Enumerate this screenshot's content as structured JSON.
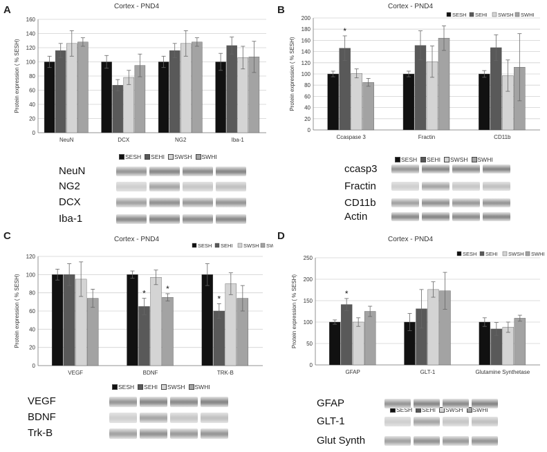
{
  "legend_labels": [
    "SESH",
    "SEHI",
    "SWSH",
    "SWHI"
  ],
  "colors": [
    "#111111",
    "#595959",
    "#d4d4d4",
    "#a3a3a3"
  ],
  "panels": [
    {
      "letter": "A",
      "blots": [
        "NeuN",
        "NG2",
        "DCX",
        "Iba-1"
      ],
      "chart_data": {
        "type": "bar",
        "title": "Cortex - PND4",
        "ylabel": "Protein expression ( % SESH)",
        "xlabel": "",
        "ylim": [
          0,
          160
        ],
        "yticks": [
          0,
          20,
          40,
          60,
          80,
          100,
          120,
          140,
          160
        ],
        "categories": [
          "NeuN",
          "DCX",
          "NG2",
          "Iba-1"
        ],
        "series": [
          {
            "name": "SESH",
            "values": [
              100,
              100,
              100,
              100
            ],
            "errors": [
              8,
              9,
              8,
              12
            ]
          },
          {
            "name": "SEHI",
            "values": [
              116,
              67,
              116,
              123
            ],
            "errors": [
              10,
              8,
              10,
              12
            ]
          },
          {
            "name": "SWSH",
            "values": [
              126,
              78,
              126,
              106
            ],
            "errors": [
              18,
              10,
              18,
              16
            ]
          },
          {
            "name": "SWHI",
            "values": [
              128,
              95,
              128,
              107
            ],
            "errors": [
              6,
              16,
              6,
              22
            ]
          }
        ],
        "significance": []
      }
    },
    {
      "letter": "B",
      "blots": [
        "ccasp3",
        "Fractin",
        "CD11b",
        "Actin"
      ],
      "chart_data": {
        "type": "bar",
        "title": "Cortex - PND4",
        "ylabel": "Protein expression ( % SESH)",
        "xlabel": "",
        "ylim": [
          0,
          200
        ],
        "yticks": [
          0,
          20,
          40,
          60,
          80,
          100,
          120,
          140,
          160,
          180,
          200
        ],
        "categories": [
          "Ccaspase 3",
          "Fractin",
          "CD11b"
        ],
        "series": [
          {
            "name": "SESH",
            "values": [
              100,
              100,
              100
            ],
            "errors": [
              5,
              5,
              6
            ]
          },
          {
            "name": "SEHI",
            "values": [
              146,
              151,
              147
            ],
            "errors": [
              22,
              26,
              23
            ]
          },
          {
            "name": "SWSH",
            "values": [
              101,
              122,
              97
            ],
            "errors": [
              8,
              28,
              28
            ]
          },
          {
            "name": "SWHI",
            "values": [
              85,
              164,
              112
            ],
            "errors": [
              7,
              22,
              60
            ]
          }
        ],
        "significance": [
          {
            "category": 0,
            "series": 1,
            "label": "*"
          }
        ]
      }
    },
    {
      "letter": "C",
      "blots": [
        "VEGF",
        "BDNF",
        "Trk-B"
      ],
      "chart_data": {
        "type": "bar",
        "title": "Cortex - PND4",
        "ylabel": "Protein expression ( % SESH)",
        "xlabel": "",
        "ylim": [
          0,
          120
        ],
        "yticks": [
          0,
          20,
          40,
          60,
          80,
          100,
          120
        ],
        "categories": [
          "VEGF",
          "BDNF",
          "TRK-B"
        ],
        "series": [
          {
            "name": "SESH",
            "values": [
              100,
              100,
              100
            ],
            "errors": [
              6,
              4,
              12
            ]
          },
          {
            "name": "SEHI",
            "values": [
              100,
              65,
              60
            ],
            "errors": [
              12,
              9,
              8
            ]
          },
          {
            "name": "SWSH",
            "values": [
              95,
              97,
              90
            ],
            "errors": [
              19,
              8,
              12
            ]
          },
          {
            "name": "SWHI",
            "values": [
              74,
              75,
              74
            ],
            "errors": [
              10,
              4,
              14
            ]
          }
        ],
        "significance": [
          {
            "category": 1,
            "series": 1,
            "label": "*"
          },
          {
            "category": 1,
            "series": 3,
            "label": "*"
          },
          {
            "category": 2,
            "series": 1,
            "label": "*"
          }
        ]
      }
    },
    {
      "letter": "D",
      "blots": [
        "GFAP",
        "GLT-1",
        "Glut Synth"
      ],
      "chart_data": {
        "type": "bar",
        "title": "Cortex - PND4",
        "ylabel": "Protein expression ( % SESH)",
        "xlabel": "",
        "ylim": [
          0,
          250
        ],
        "yticks": [
          0,
          50,
          100,
          150,
          200,
          250
        ],
        "categories": [
          "GFAP",
          "GLT-1",
          "Glutamine Synthetase"
        ],
        "series": [
          {
            "name": "SESH",
            "values": [
              100,
              100,
              100
            ],
            "errors": [
              5,
              20,
              10
            ]
          },
          {
            "name": "SEHI",
            "values": [
              141,
              131,
              84
            ],
            "errors": [
              14,
              45,
              15
            ]
          },
          {
            "name": "SWSH",
            "values": [
              100,
              176,
              88
            ],
            "errors": [
              10,
              18,
              12
            ]
          },
          {
            "name": "SWHI",
            "values": [
              125,
              173,
              109
            ],
            "errors": [
              12,
              43,
              7
            ]
          }
        ],
        "significance": [
          {
            "category": 0,
            "series": 1,
            "label": "*"
          }
        ]
      }
    }
  ]
}
